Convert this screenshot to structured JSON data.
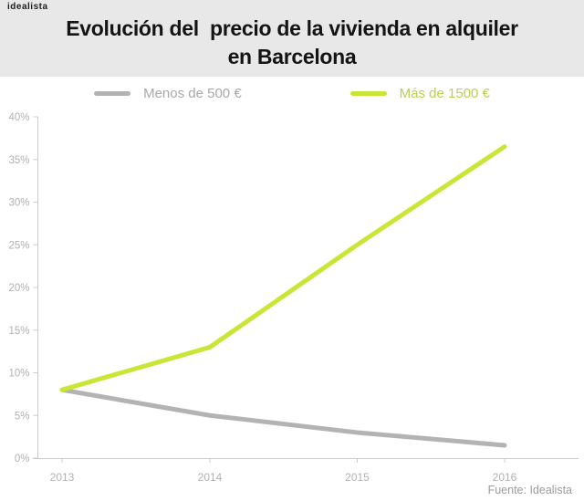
{
  "brand": {
    "logo_text": "idealista"
  },
  "header": {
    "title_line1": "Evolución del  precio de la vivienda en alquiler",
    "title_line2": "en Barcelona"
  },
  "legend": [
    {
      "label": "Menos de 500 €",
      "swatch_color": "#b3b3b3",
      "label_color": "#a8a8a8"
    },
    {
      "label": "Más de 1500 €",
      "swatch_color": "#c9e636",
      "label_color": "#bccc55"
    }
  ],
  "source": "Fuente: Idealista",
  "colors": {
    "background": "#ffffff",
    "header_bg": "#e8e8e8",
    "title": "#141414",
    "logo": "#1d1d1b",
    "axis": "#cccccc",
    "tick_label": "#b1b1b1",
    "source": "#9b9b9b"
  },
  "chart_data": {
    "type": "line",
    "title": "Evolución del precio de la vivienda en alquiler en Barcelona",
    "categories": [
      "2013",
      "2014",
      "2015",
      "2016"
    ],
    "series": [
      {
        "name": "Menos de 500 €",
        "color": "#b3b3b3",
        "values": [
          8,
          5,
          3,
          1.5
        ]
      },
      {
        "name": "Más de 1500 €",
        "color": "#c9e636",
        "values": [
          8,
          13,
          25,
          36.5
        ]
      }
    ],
    "xlabel": "",
    "ylabel": "",
    "ylabel_suffix": "%",
    "yticks": [
      0,
      5,
      10,
      15,
      20,
      25,
      30,
      35,
      40
    ],
    "ylim": [
      0,
      40
    ],
    "grid": false,
    "legend_position": "top",
    "source": "Fuente: Idealista"
  }
}
